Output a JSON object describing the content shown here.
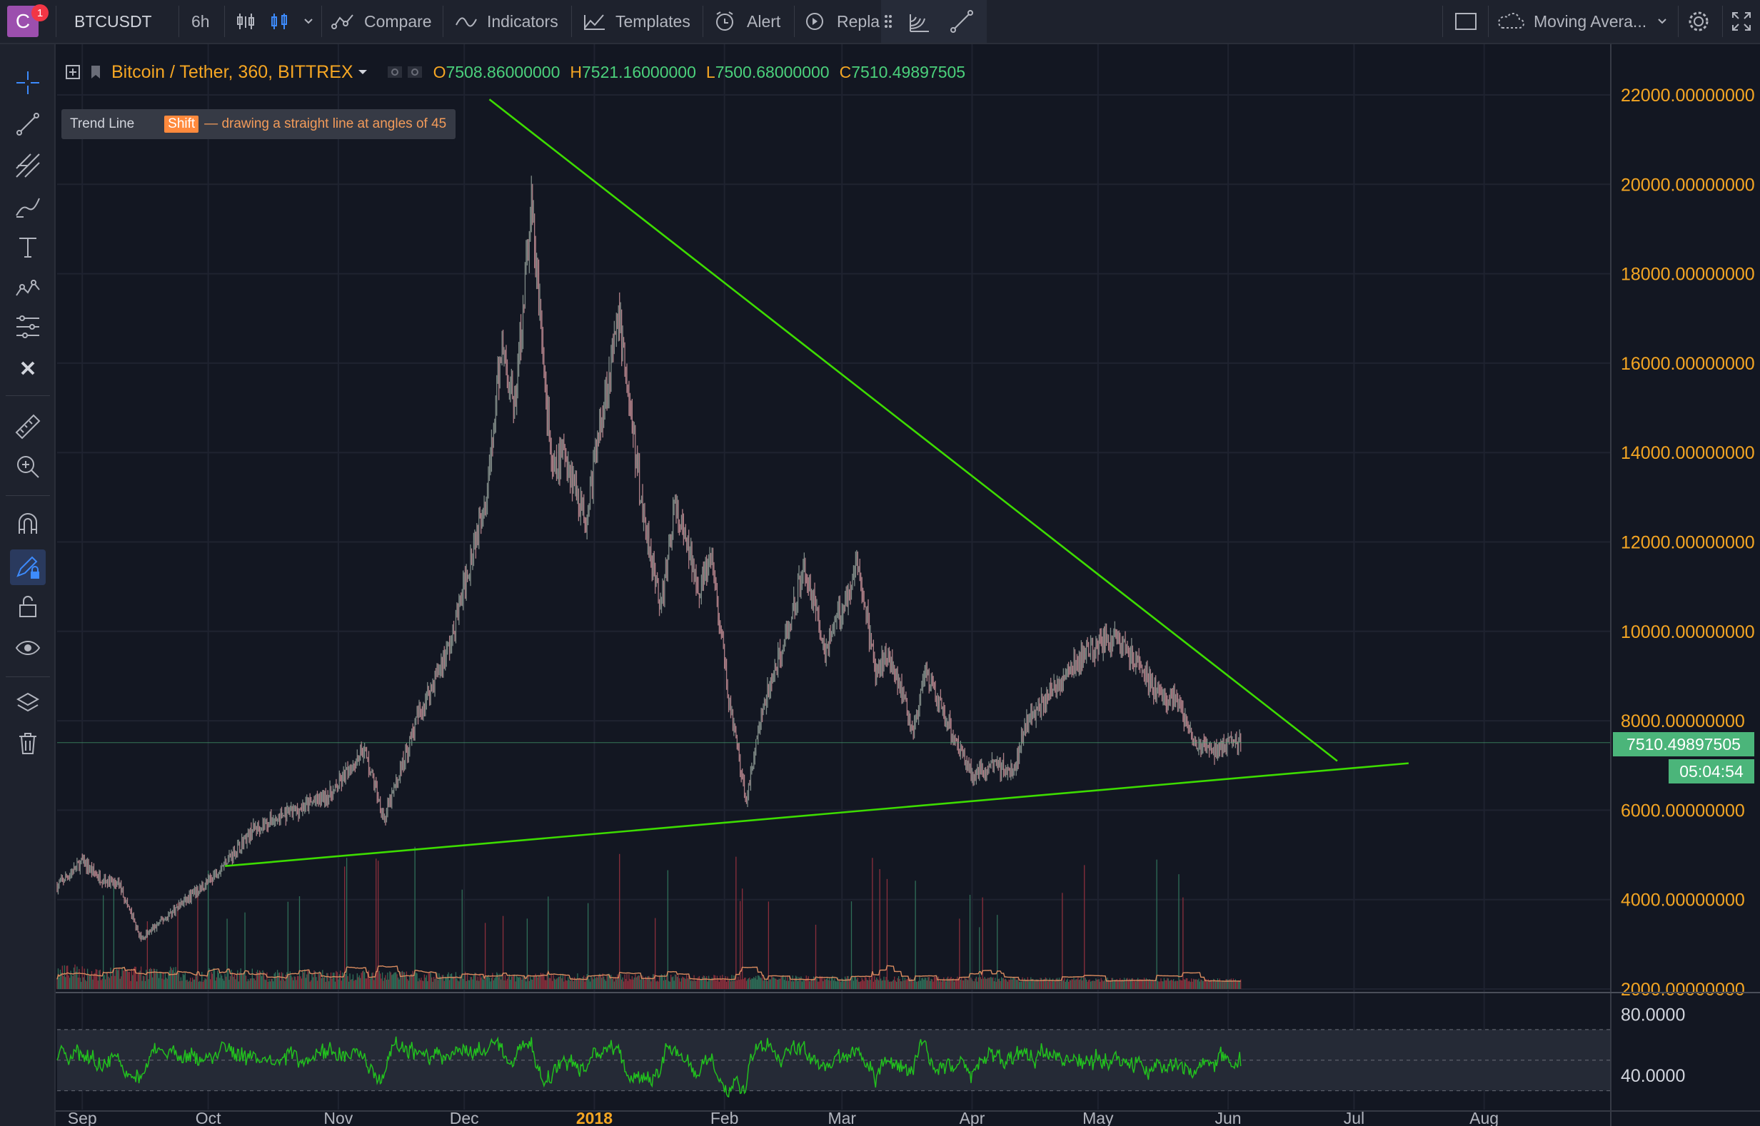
{
  "toolbar": {
    "symbol": "BTCUSDT",
    "interval": "6h",
    "compare": "Compare",
    "indicators": "Indicators",
    "templates": "Templates",
    "alert": "Alert",
    "replay": "Repla",
    "study_label": "Moving Avera...",
    "notification_count": "1",
    "avatar_letter": "C"
  },
  "legend": {
    "symbol_title": "Bitcoin / Tether, 360, BITTREX",
    "open_label": "O",
    "open": "7508.86000000",
    "high_label": "H",
    "high": "7521.16000000",
    "low_label": "L",
    "low": "7500.68000000",
    "close_label": "C",
    "close": "7510.49897505"
  },
  "tooltip": {
    "tool": "Trend Line",
    "key": "Shift",
    "hint": "— drawing a straight line at angles of 45"
  },
  "price_tags": {
    "last_price": "7510.49897505",
    "countdown": "05:04:54"
  },
  "colors": {
    "background": "#131722",
    "toolbar": "#1e222d",
    "accent_orange": "#f5a623",
    "trendline": "#3ddc00",
    "up": "#4bb57a",
    "down": "#e0545e",
    "rsi": "#22c01e",
    "active_tool": "#2962ff"
  },
  "icons": [
    "crosshair-icon",
    "trend-line-icon",
    "pitchfork-icon",
    "brush-icon",
    "text-icon",
    "pattern-icon",
    "measure-tools-icon",
    "remove-icon",
    "ruler-icon",
    "zoom-icon",
    "magnet-icon",
    "lock-drawing-icon",
    "unlock-icon",
    "eye-icon",
    "layers-icon",
    "trash-icon",
    "gear-icon",
    "fullscreen-icon",
    "cloud-icon",
    "square-icon"
  ],
  "chart_data": [
    {
      "type": "candlestick",
      "title": "Bitcoin / Tether, 360, BITTREX",
      "y_range": [
        2000,
        22000
      ],
      "y_ticks": [
        "22000.00000000",
        "20000.00000000",
        "18000.00000000",
        "16000.00000000",
        "14000.00000000",
        "12000.00000000",
        "10000.00000000",
        "8000.00000000",
        "6000.00000000",
        "4000.00000000",
        "2000.00000000"
      ],
      "x_ticks": [
        "Sep",
        "Oct",
        "Nov",
        "Dec",
        "2018",
        "Feb",
        "Mar",
        "Apr",
        "May",
        "Jun",
        "Jul",
        "Aug"
      ],
      "x_range": [
        "2017-08-26",
        "2018-08-31"
      ],
      "price_path": [
        [
          "2017-08-26",
          4300
        ],
        [
          "2017-09-01",
          4850
        ],
        [
          "2017-09-05",
          4500
        ],
        [
          "2017-09-10",
          4300
        ],
        [
          "2017-09-15",
          3100
        ],
        [
          "2017-09-22",
          3700
        ],
        [
          "2017-10-01",
          4400
        ],
        [
          "2017-10-12",
          5600
        ],
        [
          "2017-10-22",
          6000
        ],
        [
          "2017-10-31",
          6400
        ],
        [
          "2017-11-07",
          7400
        ],
        [
          "2017-11-12",
          5800
        ],
        [
          "2017-11-20",
          8100
        ],
        [
          "2017-11-28",
          9800
        ],
        [
          "2017-12-07",
          13500
        ],
        [
          "2017-12-10",
          16500
        ],
        [
          "2017-12-13",
          15000
        ],
        [
          "2017-12-17",
          19500
        ],
        [
          "2017-12-22",
          13500
        ],
        [
          "2017-12-25",
          14000
        ],
        [
          "2017-12-30",
          12500
        ],
        [
          "2018-01-03",
          15000
        ],
        [
          "2018-01-07",
          17000
        ],
        [
          "2018-01-12",
          13000
        ],
        [
          "2018-01-17",
          10500
        ],
        [
          "2018-01-20",
          12800
        ],
        [
          "2018-01-26",
          11000
        ],
        [
          "2018-01-29",
          11600
        ],
        [
          "2018-02-02",
          8500
        ],
        [
          "2018-02-06",
          6200
        ],
        [
          "2018-02-10",
          8200
        ],
        [
          "2018-02-16",
          10000
        ],
        [
          "2018-02-20",
          11500
        ],
        [
          "2018-02-25",
          9600
        ],
        [
          "2018-03-05",
          11500
        ],
        [
          "2018-03-09",
          9000
        ],
        [
          "2018-03-12",
          9600
        ],
        [
          "2018-03-18",
          7800
        ],
        [
          "2018-03-21",
          9000
        ],
        [
          "2018-03-26",
          8000
        ],
        [
          "2018-04-01",
          6800
        ],
        [
          "2018-04-06",
          7000
        ],
        [
          "2018-04-11",
          6900
        ],
        [
          "2018-04-14",
          8000
        ],
        [
          "2018-04-22",
          8900
        ],
        [
          "2018-04-27",
          9400
        ],
        [
          "2018-05-05",
          9900
        ],
        [
          "2018-05-10",
          9300
        ],
        [
          "2018-05-15",
          8600
        ],
        [
          "2018-05-20",
          8400
        ],
        [
          "2018-05-24",
          7500
        ],
        [
          "2018-05-29",
          7300
        ],
        [
          "2018-06-02",
          7550
        ],
        [
          "2018-06-04",
          7510
        ]
      ],
      "last_price": "7510.49897505",
      "trendlines": [
        {
          "from": [
            "2017-12-07",
            21900
          ],
          "to": [
            "2018-06-27",
            7100
          ]
        },
        {
          "from": [
            "2017-10-05",
            4750
          ],
          "to": [
            "2018-07-14",
            7050
          ]
        }
      ]
    },
    {
      "type": "bar",
      "series_description": "volume with moving average",
      "x_range": [
        "2017-08-26",
        "2018-06-04"
      ]
    },
    {
      "type": "line",
      "indicator": "RSI",
      "y_ticks": [
        "80.0000",
        "40.0000"
      ],
      "band": [
        30,
        70
      ],
      "y_range": [
        20,
        90
      ]
    }
  ]
}
